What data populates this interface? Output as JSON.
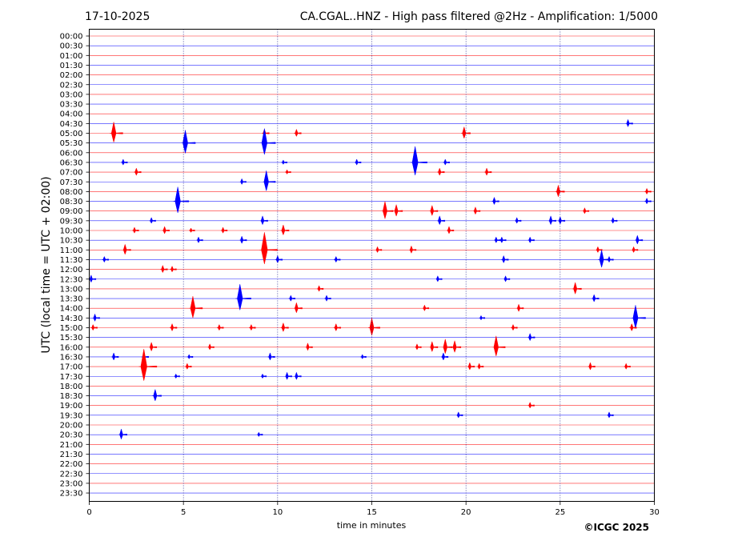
{
  "chart_data": {
    "type": "line",
    "title_left": "17-10-2025",
    "title_right": "CA.CGAL..HNZ - High pass filtered @2Hz - Amplification: 1/5000",
    "xlabel": "time in minutes",
    "ylabel": "UTC (local time = UTC + 02:00)",
    "xlim": [
      0,
      30
    ],
    "x_ticks": [
      0,
      5,
      10,
      15,
      20,
      25,
      30
    ],
    "y_tick_labels": [
      "00:00",
      "00:30",
      "01:00",
      "01:30",
      "02:00",
      "02:30",
      "03:00",
      "03:30",
      "04:00",
      "04:30",
      "05:00",
      "05:30",
      "06:00",
      "06:30",
      "07:00",
      "07:30",
      "08:00",
      "08:30",
      "09:00",
      "09:30",
      "10:00",
      "10:30",
      "11:00",
      "11:30",
      "12:00",
      "12:30",
      "13:00",
      "13:30",
      "14:00",
      "14:30",
      "15:00",
      "15:30",
      "16:00",
      "16:30",
      "17:00",
      "17:30",
      "18:00",
      "18:30",
      "19:00",
      "19:30",
      "20:00",
      "20:30",
      "21:00",
      "21:30",
      "22:00",
      "22:30",
      "23:00",
      "23:30"
    ],
    "trace_colors": [
      "#ff0000",
      "#0000ff"
    ],
    "grid": "vertical dotted at x ticks",
    "events": [
      [
        "04:30",
        28.6,
        5
      ],
      [
        "05:00",
        1.3,
        14
      ],
      [
        "05:00",
        9.3,
        5
      ],
      [
        "05:00",
        11.0,
        5
      ],
      [
        "05:00",
        19.9,
        8
      ],
      [
        "05:30",
        5.1,
        16
      ],
      [
        "05:30",
        9.3,
        18
      ],
      [
        "06:30",
        1.8,
        4
      ],
      [
        "06:30",
        10.3,
        3
      ],
      [
        "06:30",
        14.2,
        4
      ],
      [
        "06:30",
        17.3,
        20
      ],
      [
        "06:30",
        18.9,
        4
      ],
      [
        "07:00",
        2.5,
        5
      ],
      [
        "07:00",
        10.5,
        3
      ],
      [
        "07:00",
        18.6,
        5
      ],
      [
        "07:00",
        21.1,
        5
      ],
      [
        "07:30",
        8.1,
        4
      ],
      [
        "07:30",
        9.4,
        14
      ],
      [
        "08:00",
        24.9,
        8
      ],
      [
        "08:00",
        29.6,
        4
      ],
      [
        "08:30",
        4.7,
        18
      ],
      [
        "08:30",
        21.5,
        5
      ],
      [
        "08:30",
        29.6,
        4
      ],
      [
        "09:00",
        15.7,
        12
      ],
      [
        "09:00",
        16.3,
        8
      ],
      [
        "09:00",
        18.2,
        7
      ],
      [
        "09:00",
        20.5,
        5
      ],
      [
        "09:00",
        26.3,
        4
      ],
      [
        "09:30",
        3.3,
        4
      ],
      [
        "09:30",
        9.2,
        6
      ],
      [
        "09:30",
        18.6,
        6
      ],
      [
        "09:30",
        22.7,
        4
      ],
      [
        "09:30",
        24.5,
        6
      ],
      [
        "09:30",
        25.0,
        5
      ],
      [
        "09:30",
        27.8,
        4
      ],
      [
        "10:00",
        2.4,
        4
      ],
      [
        "10:00",
        4.0,
        5
      ],
      [
        "10:00",
        5.4,
        3
      ],
      [
        "10:00",
        7.1,
        4
      ],
      [
        "10:00",
        10.3,
        7
      ],
      [
        "10:00",
        19.1,
        5
      ],
      [
        "10:30",
        5.8,
        4
      ],
      [
        "10:30",
        8.1,
        5
      ],
      [
        "10:30",
        21.6,
        4
      ],
      [
        "10:30",
        21.9,
        4
      ],
      [
        "10:30",
        23.4,
        4
      ],
      [
        "10:30",
        29.1,
        6
      ],
      [
        "11:00",
        1.9,
        7
      ],
      [
        "11:00",
        9.3,
        22
      ],
      [
        "11:00",
        15.3,
        4
      ],
      [
        "11:00",
        17.1,
        5
      ],
      [
        "11:00",
        27.0,
        4
      ],
      [
        "11:00",
        28.9,
        4
      ],
      [
        "11:30",
        0.8,
        4
      ],
      [
        "11:30",
        10.0,
        5
      ],
      [
        "11:30",
        13.1,
        4
      ],
      [
        "11:30",
        22.0,
        5
      ],
      [
        "11:30",
        27.2,
        12
      ],
      [
        "11:30",
        27.6,
        4
      ],
      [
        "12:00",
        3.9,
        5
      ],
      [
        "12:00",
        4.4,
        4
      ],
      [
        "12:30",
        0.1,
        5
      ],
      [
        "12:30",
        18.5,
        4
      ],
      [
        "12:30",
        22.1,
        4
      ],
      [
        "13:00",
        12.2,
        4
      ],
      [
        "13:00",
        25.8,
        8
      ],
      [
        "13:30",
        8.0,
        18
      ],
      [
        "13:30",
        10.7,
        4
      ],
      [
        "13:30",
        12.6,
        4
      ],
      [
        "13:30",
        26.8,
        5
      ],
      [
        "14:00",
        5.5,
        15
      ],
      [
        "14:00",
        11.0,
        7
      ],
      [
        "14:00",
        17.8,
        4
      ],
      [
        "14:00",
        22.8,
        5
      ],
      [
        "14:30",
        0.3,
        5
      ],
      [
        "14:30",
        20.8,
        3
      ],
      [
        "14:30",
        29.0,
        16
      ],
      [
        "15:00",
        0.2,
        4
      ],
      [
        "15:00",
        4.4,
        5
      ],
      [
        "15:00",
        6.9,
        4
      ],
      [
        "15:00",
        8.6,
        4
      ],
      [
        "15:00",
        10.3,
        6
      ],
      [
        "15:00",
        13.1,
        5
      ],
      [
        "15:00",
        15.0,
        12
      ],
      [
        "15:00",
        22.5,
        4
      ],
      [
        "15:00",
        28.8,
        5
      ],
      [
        "15:30",
        23.4,
        5
      ],
      [
        "16:00",
        3.3,
        6
      ],
      [
        "16:00",
        6.4,
        4
      ],
      [
        "16:00",
        11.6,
        5
      ],
      [
        "16:00",
        17.4,
        4
      ],
      [
        "16:00",
        18.2,
        7
      ],
      [
        "16:00",
        18.9,
        10
      ],
      [
        "16:00",
        19.4,
        8
      ],
      [
        "16:00",
        21.6,
        14
      ],
      [
        "16:30",
        1.3,
        5
      ],
      [
        "16:30",
        2.9,
        5
      ],
      [
        "16:30",
        5.3,
        3
      ],
      [
        "16:30",
        9.6,
        5
      ],
      [
        "16:30",
        14.5,
        3
      ],
      [
        "16:30",
        18.8,
        5
      ],
      [
        "17:00",
        2.9,
        22
      ],
      [
        "17:00",
        5.2,
        4
      ],
      [
        "17:00",
        20.2,
        5
      ],
      [
        "17:00",
        20.7,
        4
      ],
      [
        "17:00",
        26.6,
        5
      ],
      [
        "17:00",
        28.5,
        4
      ],
      [
        "17:30",
        4.6,
        3
      ],
      [
        "17:30",
        9.2,
        3
      ],
      [
        "17:30",
        10.5,
        5
      ],
      [
        "17:30",
        11.0,
        5
      ],
      [
        "18:30",
        3.5,
        8
      ],
      [
        "19:00",
        23.4,
        4
      ],
      [
        "19:30",
        19.6,
        4
      ],
      [
        "19:30",
        27.6,
        4
      ],
      [
        "20:30",
        1.7,
        7
      ],
      [
        "20:30",
        9.0,
        3
      ]
    ]
  },
  "footer": {
    "copyright": "©ICGC 2025"
  }
}
